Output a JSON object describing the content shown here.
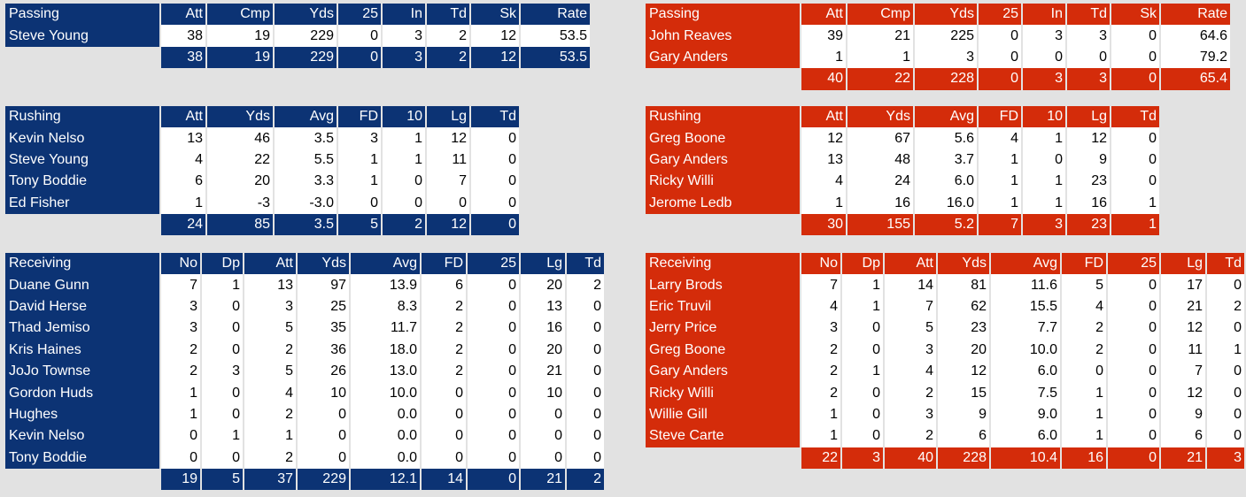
{
  "home": {
    "passing": {
      "columns": [
        "Passing",
        "Att",
        "Cmp",
        "Yds",
        "25",
        "In",
        "Td",
        "Sk",
        "Rate"
      ],
      "rows": [
        [
          "Steve Young",
          "38",
          "19",
          "229",
          "0",
          "3",
          "2",
          "12",
          "53.5"
        ]
      ],
      "total": [
        "38",
        "19",
        "229",
        "0",
        "3",
        "2",
        "12",
        "53.5"
      ]
    },
    "rushing": {
      "columns": [
        "Rushing",
        "Att",
        "Yds",
        "Avg",
        "FD",
        "10",
        "Lg",
        "Td"
      ],
      "rows": [
        [
          "Kevin Nelso",
          "13",
          "46",
          "3.5",
          "3",
          "1",
          "12",
          "0"
        ],
        [
          "Steve Young",
          "4",
          "22",
          "5.5",
          "1",
          "1",
          "11",
          "0"
        ],
        [
          "Tony Boddie",
          "6",
          "20",
          "3.3",
          "1",
          "0",
          "7",
          "0"
        ],
        [
          "Ed Fisher",
          "1",
          "-3",
          "-3.0",
          "0",
          "0",
          "0",
          "0"
        ]
      ],
      "total": [
        "24",
        "85",
        "3.5",
        "5",
        "2",
        "12",
        "0"
      ]
    },
    "receiving": {
      "columns": [
        "Receiving",
        "No",
        "Dp",
        "Att",
        "Yds",
        "Avg",
        "FD",
        "25",
        "Lg",
        "Td"
      ],
      "rows": [
        [
          "Duane Gunn",
          "7",
          "1",
          "13",
          "97",
          "13.9",
          "6",
          "0",
          "20",
          "2"
        ],
        [
          "David Herse",
          "3",
          "0",
          "3",
          "25",
          "8.3",
          "2",
          "0",
          "13",
          "0"
        ],
        [
          "Thad Jemiso",
          "3",
          "0",
          "5",
          "35",
          "11.7",
          "2",
          "0",
          "16",
          "0"
        ],
        [
          "Kris Haines",
          "2",
          "0",
          "2",
          "36",
          "18.0",
          "2",
          "0",
          "20",
          "0"
        ],
        [
          "JoJo Townse",
          "2",
          "3",
          "5",
          "26",
          "13.0",
          "2",
          "0",
          "21",
          "0"
        ],
        [
          "Gordon Huds",
          "1",
          "0",
          "4",
          "10",
          "10.0",
          "0",
          "0",
          "10",
          "0"
        ],
        [
          "Hughes",
          "1",
          "0",
          "2",
          "0",
          "0.0",
          "0",
          "0",
          "0",
          "0"
        ],
        [
          "Kevin Nelso",
          "0",
          "1",
          "1",
          "0",
          "0.0",
          "0",
          "0",
          "0",
          "0"
        ],
        [
          "Tony Boddie",
          "0",
          "0",
          "2",
          "0",
          "0.0",
          "0",
          "0",
          "0",
          "0"
        ]
      ],
      "total": [
        "19",
        "5",
        "37",
        "229",
        "12.1",
        "14",
        "0",
        "21",
        "2"
      ]
    }
  },
  "away": {
    "passing": {
      "columns": [
        "Passing",
        "Att",
        "Cmp",
        "Yds",
        "25",
        "In",
        "Td",
        "Sk",
        "Rate"
      ],
      "rows": [
        [
          "John Reaves",
          "39",
          "21",
          "225",
          "0",
          "3",
          "3",
          "0",
          "64.6"
        ],
        [
          "Gary Anders",
          "1",
          "1",
          "3",
          "0",
          "0",
          "0",
          "0",
          "79.2"
        ]
      ],
      "total": [
        "40",
        "22",
        "228",
        "0",
        "3",
        "3",
        "0",
        "65.4"
      ]
    },
    "rushing": {
      "columns": [
        "Rushing",
        "Att",
        "Yds",
        "Avg",
        "FD",
        "10",
        "Lg",
        "Td"
      ],
      "rows": [
        [
          "Greg Boone",
          "12",
          "67",
          "5.6",
          "4",
          "1",
          "12",
          "0"
        ],
        [
          "Gary Anders",
          "13",
          "48",
          "3.7",
          "1",
          "0",
          "9",
          "0"
        ],
        [
          "Ricky Willi",
          "4",
          "24",
          "6.0",
          "1",
          "1",
          "23",
          "0"
        ],
        [
          "Jerome Ledb",
          "1",
          "16",
          "16.0",
          "1",
          "1",
          "16",
          "1"
        ]
      ],
      "total": [
        "30",
        "155",
        "5.2",
        "7",
        "3",
        "23",
        "1"
      ]
    },
    "receiving": {
      "columns": [
        "Receiving",
        "No",
        "Dp",
        "Att",
        "Yds",
        "Avg",
        "FD",
        "25",
        "Lg",
        "Td"
      ],
      "rows": [
        [
          "Larry Brods",
          "7",
          "1",
          "14",
          "81",
          "11.6",
          "5",
          "0",
          "17",
          "0"
        ],
        [
          "Eric Truvil",
          "4",
          "1",
          "7",
          "62",
          "15.5",
          "4",
          "0",
          "21",
          "2"
        ],
        [
          "Jerry Price",
          "3",
          "0",
          "5",
          "23",
          "7.7",
          "2",
          "0",
          "12",
          "0"
        ],
        [
          "Greg Boone",
          "2",
          "0",
          "3",
          "20",
          "10.0",
          "2",
          "0",
          "11",
          "1"
        ],
        [
          "Gary Anders",
          "2",
          "1",
          "4",
          "12",
          "6.0",
          "0",
          "0",
          "7",
          "0"
        ],
        [
          "Ricky Willi",
          "2",
          "0",
          "2",
          "15",
          "7.5",
          "1",
          "0",
          "12",
          "0"
        ],
        [
          "Willie Gill",
          "1",
          "0",
          "3",
          "9",
          "9.0",
          "1",
          "0",
          "9",
          "0"
        ],
        [
          "Steve Carte",
          "1",
          "0",
          "2",
          "6",
          "6.0",
          "1",
          "0",
          "6",
          "0"
        ]
      ],
      "total": [
        "22",
        "3",
        "40",
        "228",
        "10.4",
        "16",
        "0",
        "21",
        "3"
      ]
    }
  },
  "colors": {
    "home": "#0c3374",
    "away": "#d42c0a",
    "background": "#e2e2e2"
  }
}
